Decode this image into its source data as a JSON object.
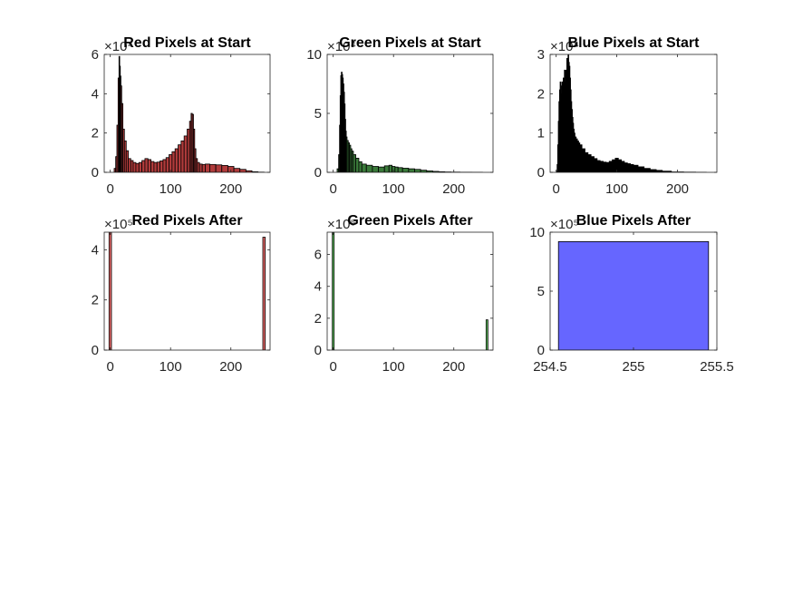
{
  "chart_data": [
    {
      "type": "bar",
      "title": "Red Pixels at Start",
      "exponent_label": "×10⁴",
      "xlim": [
        -10,
        265
      ],
      "ylim": [
        0,
        6
      ],
      "xticks": [
        "0",
        "100",
        "200"
      ],
      "xtick_values": [
        0,
        100,
        200
      ],
      "yticks": [
        "0",
        "2",
        "4",
        "6"
      ],
      "ytick_values": [
        0,
        2,
        4,
        6
      ],
      "fill": "#b03b3b",
      "edge": "#000000",
      "x": [
        5,
        8,
        10,
        12,
        14,
        15,
        16,
        17,
        18,
        20,
        22,
        25,
        28,
        32,
        36,
        40,
        45,
        50,
        55,
        60,
        65,
        70,
        75,
        80,
        85,
        90,
        95,
        100,
        105,
        110,
        115,
        120,
        125,
        130,
        133,
        135,
        137,
        139,
        141,
        143,
        146,
        150,
        155,
        160,
        170,
        180,
        190,
        200,
        210,
        220,
        230,
        240,
        250
      ],
      "values": [
        0,
        0.2,
        0.8,
        2.4,
        4.8,
        5.9,
        5.4,
        4.9,
        4.4,
        3.5,
        2.2,
        1.6,
        1.1,
        0.7,
        0.6,
        0.5,
        0.45,
        0.5,
        0.6,
        0.7,
        0.65,
        0.55,
        0.5,
        0.52,
        0.58,
        0.65,
        0.75,
        0.9,
        1.05,
        1.2,
        1.4,
        1.6,
        1.85,
        2.2,
        2.6,
        3.0,
        2.95,
        2.2,
        1.2,
        0.7,
        0.5,
        0.42,
        0.4,
        0.42,
        0.4,
        0.38,
        0.35,
        0.3,
        0.2,
        0.15,
        0.08,
        0.03,
        0.01
      ]
    },
    {
      "type": "bar",
      "title": "Green Pixels at Start",
      "exponent_label": "×10⁴",
      "xlim": [
        -10,
        265
      ],
      "ylim": [
        0,
        10
      ],
      "xticks": [
        "0",
        "100",
        "200"
      ],
      "xtick_values": [
        0,
        100,
        200
      ],
      "yticks": [
        "0",
        "5",
        "10"
      ],
      "ytick_values": [
        0,
        5,
        10
      ],
      "fill": "#3a7a3a",
      "edge": "#000000",
      "x": [
        5,
        8,
        10,
        11,
        12,
        13,
        14,
        15,
        16,
        17,
        18,
        19,
        20,
        21,
        22,
        24,
        26,
        28,
        30,
        32,
        35,
        40,
        45,
        50,
        60,
        70,
        80,
        90,
        95,
        100,
        105,
        110,
        120,
        130,
        140,
        150,
        160,
        170,
        180,
        190,
        200,
        220,
        240,
        255
      ],
      "values": [
        0,
        0.3,
        1.5,
        4,
        6.5,
        8.2,
        8.5,
        8.3,
        8.0,
        7.5,
        6.8,
        5.8,
        4.5,
        3.5,
        3.0,
        2.7,
        2.5,
        2.3,
        2.0,
        1.8,
        1.5,
        1.2,
        0.9,
        0.7,
        0.6,
        0.5,
        0.45,
        0.55,
        0.6,
        0.5,
        0.45,
        0.4,
        0.35,
        0.3,
        0.25,
        0.18,
        0.12,
        0.08,
        0.05,
        0.03,
        0.02,
        0.01,
        0.005,
        0
      ]
    },
    {
      "type": "bar",
      "title": "Blue Pixels at Start",
      "exponent_label": "×10⁴",
      "xlim": [
        -10,
        265
      ],
      "ylim": [
        0,
        3
      ],
      "xticks": [
        "0",
        "100",
        "200"
      ],
      "xtick_values": [
        0,
        100,
        200
      ],
      "yticks": [
        "0",
        "1",
        "2",
        "3"
      ],
      "ytick_values": [
        0,
        1,
        2,
        3
      ],
      "fill": "#000000",
      "edge": "#000000",
      "x": [
        0,
        1,
        2,
        3,
        4,
        5,
        6,
        7,
        8,
        9,
        10,
        11,
        12,
        13,
        14,
        15,
        16,
        17,
        18,
        19,
        20,
        21,
        22,
        23,
        24,
        25,
        26,
        27,
        28,
        29,
        30,
        32,
        34,
        36,
        38,
        40,
        45,
        50,
        55,
        60,
        65,
        70,
        75,
        80,
        85,
        90,
        95,
        100,
        105,
        110,
        115,
        120,
        125,
        130,
        140,
        150,
        160,
        170,
        180,
        200,
        220,
        240,
        255
      ],
      "values": [
        0,
        0.02,
        0.2,
        0.7,
        1.3,
        1.8,
        2.1,
        2.3,
        2.2,
        2.0,
        2.3,
        2.1,
        2.4,
        2.2,
        2.6,
        2.3,
        2.6,
        2.4,
        2.9,
        2.5,
        3.0,
        2.8,
        2.7,
        2.4,
        2.1,
        1.8,
        1.6,
        1.4,
        1.25,
        1.1,
        1.0,
        0.9,
        0.85,
        0.8,
        0.75,
        0.7,
        0.6,
        0.5,
        0.45,
        0.4,
        0.35,
        0.3,
        0.28,
        0.26,
        0.25,
        0.28,
        0.32,
        0.36,
        0.32,
        0.28,
        0.24,
        0.22,
        0.2,
        0.18,
        0.14,
        0.1,
        0.07,
        0.05,
        0.03,
        0.01,
        0.005,
        0.002,
        0
      ]
    },
    {
      "type": "bar",
      "title": "Red Pixels After",
      "exponent_label": "×10⁵",
      "xlim": [
        -10,
        265
      ],
      "ylim": [
        0,
        4.7
      ],
      "xticks": [
        "0",
        "100",
        "200"
      ],
      "xtick_values": [
        0,
        100,
        200
      ],
      "yticks": [
        "0",
        "2",
        "4"
      ],
      "ytick_values": [
        0,
        2,
        4
      ],
      "fill": "#e06666",
      "edge": "#000000",
      "bar_width": 4,
      "x": [
        0,
        255
      ],
      "values": [
        4.9,
        4.5
      ]
    },
    {
      "type": "bar",
      "title": "Green Pixels After",
      "exponent_label": "×10⁵",
      "xlim": [
        -10,
        265
      ],
      "ylim": [
        0,
        7.4
      ],
      "xticks": [
        "0",
        "100",
        "200"
      ],
      "xtick_values": [
        0,
        100,
        200
      ],
      "yticks": [
        "0",
        "2",
        "4",
        "6"
      ],
      "ytick_values": [
        0,
        2,
        4,
        6
      ],
      "fill": "#5fbf5f",
      "edge": "#000000",
      "bar_width": 3,
      "x": [
        0,
        255
      ],
      "values": [
        7.5,
        1.9
      ]
    },
    {
      "type": "bar",
      "title": "Blue Pixels After",
      "exponent_label": "×10⁵",
      "xlim": [
        254.5,
        255.5
      ],
      "ylim": [
        0,
        10
      ],
      "xticks": [
        "254.5",
        "255",
        "255.5"
      ],
      "xtick_values": [
        254.5,
        255,
        255.5
      ],
      "yticks": [
        "0",
        "5",
        "10"
      ],
      "ytick_values": [
        0,
        5,
        10
      ],
      "fill": "#6666ff",
      "edge": "#000000",
      "bar_width": 0.9,
      "x": [
        255
      ],
      "values": [
        9.2
      ]
    }
  ]
}
